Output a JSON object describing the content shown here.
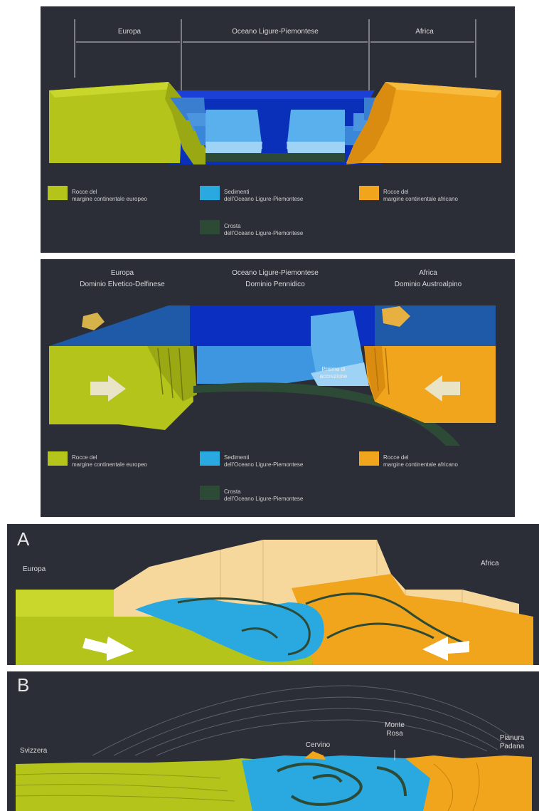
{
  "panel1": {
    "header": {
      "europe": "Europa",
      "ocean": "Oceano Ligure-Piemontese",
      "africa": "Africa"
    },
    "legend": {
      "european_rocks": [
        "Rocce del",
        "margine continentale europeo"
      ],
      "ocean_sediments": [
        "Sedimenti",
        "dell'Oceano Ligure-Piemontese"
      ],
      "african_rocks": [
        "Rocce del",
        "margine continentale africano"
      ],
      "ocean_crust": [
        "Crosta",
        "dell'Oceano Ligure-Piemontese"
      ]
    }
  },
  "panel2": {
    "header": {
      "europe": "Europa",
      "europe_domain": "Dominio Elvetico-Delfinese",
      "ocean": "Oceano Ligure-Piemontese",
      "ocean_domain": "Dominio Pennidico",
      "africa": "Africa",
      "africa_domain": "Dominio Austroalpino"
    },
    "prism_label": [
      "Prisma di",
      "accrezione"
    ],
    "legend": {
      "european_rocks": [
        "Rocce del",
        "margine continentale europeo"
      ],
      "ocean_sediments": [
        "Sedimenti",
        "dell'Oceano Ligure-Piemontese"
      ],
      "african_rocks": [
        "Rocce del",
        "margine continentale africano"
      ],
      "ocean_crust": [
        "Crosta",
        "dell'Oceano Ligure-Piemontese"
      ]
    }
  },
  "panel3": {
    "letter": "A",
    "europe": "Europa",
    "africa": "Africa"
  },
  "panel4": {
    "letter": "B",
    "svizzera": "Svizzera",
    "cervino": "Cervino",
    "monte_rosa": [
      "Monte",
      "Rosa"
    ],
    "pianura_padana": [
      "Pianura",
      "Padana"
    ]
  },
  "colors": {
    "panel_bg": "#2b2d37",
    "european": "#b5c41a",
    "ocean_sediment": "#2aa9e0",
    "african": "#f0a51c",
    "ocean_crust": "#2d4a37",
    "deep_ocean": "#0a2fb8"
  }
}
